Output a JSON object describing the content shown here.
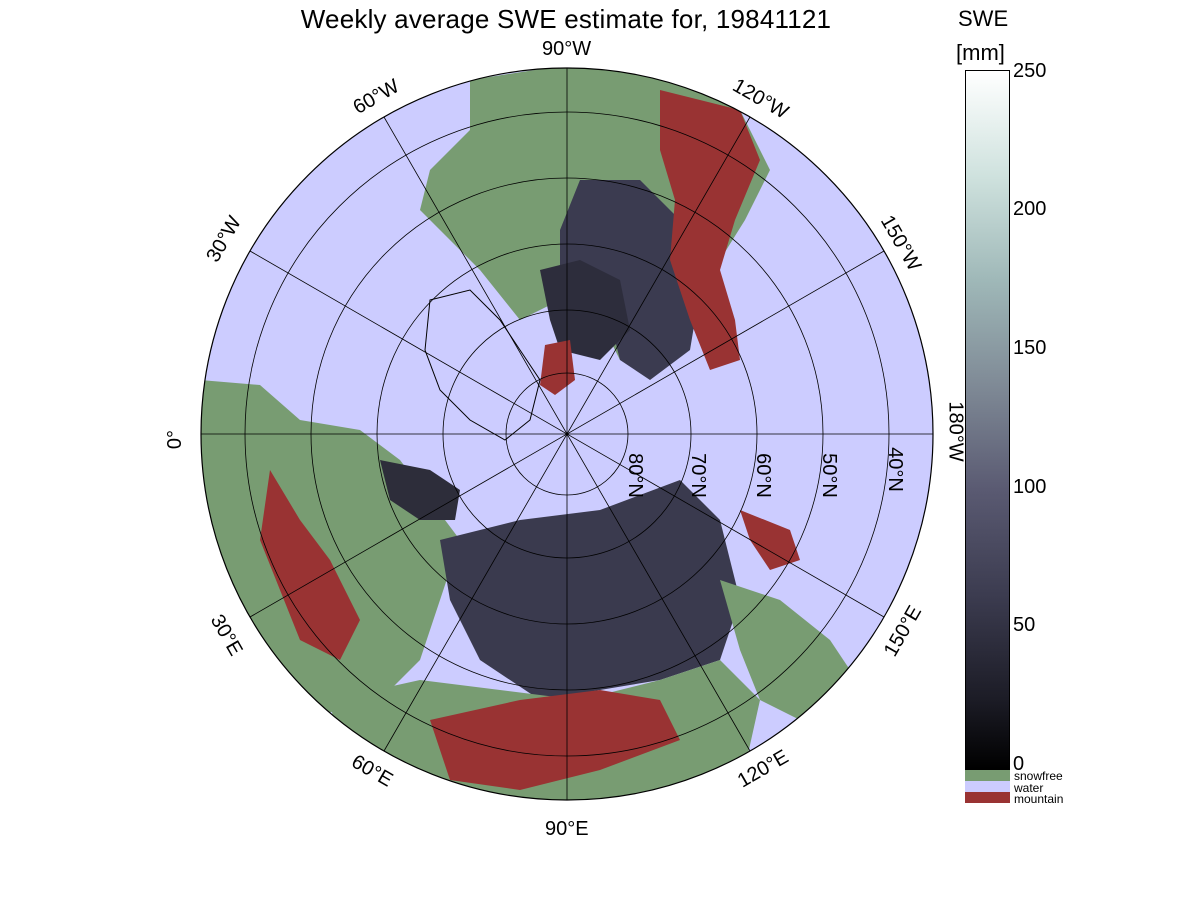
{
  "title": "Weekly average SWE estimate for, 19841121",
  "colorbar": {
    "label_line1": "SWE",
    "label_line2": "[mm]",
    "ticks": [
      "0",
      "50",
      "100",
      "150",
      "200",
      "250"
    ],
    "legend": [
      {
        "label": "snowfree",
        "color": "#789c72"
      },
      {
        "label": "water",
        "color": "#ccccff"
      },
      {
        "label": "mountain",
        "color": "#993333"
      }
    ]
  },
  "map": {
    "longitude_labels": [
      "90°W",
      "60°W",
      "120°W",
      "30°W",
      "150°W",
      "0°",
      "180°W",
      "30°E",
      "150°E",
      "60°E",
      "120°E",
      "90°E"
    ],
    "latitude_labels": [
      "80°N",
      "70°N",
      "60°N",
      "50°N",
      "40°N"
    ],
    "colors": {
      "water": "#ccccff",
      "snowfree": "#789c72",
      "mountain": "#993333",
      "snow_dark": "#2a2a38",
      "snow_mid": "#4d4d62",
      "outline": "#000000"
    }
  }
}
